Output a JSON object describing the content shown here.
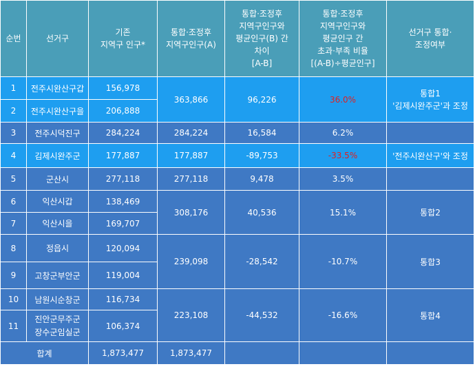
{
  "header": {
    "col_no": "순번",
    "col_district": "선거구",
    "col_pop_line1": "기존",
    "col_pop_line2": "지역구 인구*",
    "col_merged_line1": "통합·조정후",
    "col_merged_line2": "지역구인구(A)",
    "col_diff_line1": "통합·조정후",
    "col_diff_line2": "지역구인구와",
    "col_diff_line3": "평균인구(B) 간",
    "col_diff_line4": "차이",
    "col_diff_line5": "[A-B]",
    "col_ratio_line1": "통합·조정후",
    "col_ratio_line2": "지역구인구와",
    "col_ratio_line3": "평균인구 간",
    "col_ratio_line4": "초과·부족 비율",
    "col_ratio_line5": "[(A-B)÷평균인구]",
    "col_status_line1": "선거구 통합·",
    "col_status_line2": "조정여부"
  },
  "rows": [
    {
      "no": "1",
      "district": "전주시완산구갑",
      "pop": "156,978"
    },
    {
      "no": "2",
      "district": "전주시완산구을",
      "pop": "206,888"
    },
    {
      "no": "3",
      "district": "전주시덕진구",
      "pop": "284,224"
    },
    {
      "no": "4",
      "district": "김제시완주군",
      "pop": "177,887"
    },
    {
      "no": "5",
      "district": "군산시",
      "pop": "277,118"
    },
    {
      "no": "6",
      "district": "익산시갑",
      "pop": "138,469"
    },
    {
      "no": "7",
      "district": "익산시을",
      "pop": "169,707"
    },
    {
      "no": "8",
      "district": "정읍시",
      "pop": "120,094"
    },
    {
      "no": "9",
      "district": "고창군부안군",
      "pop": "119,004"
    },
    {
      "no": "10",
      "district": "남원시순창군",
      "pop": "116,734"
    },
    {
      "no": "11",
      "district_line1": "진안군무주군",
      "district_line2": "장수군임실군",
      "pop": "106,374"
    }
  ],
  "groups": [
    {
      "merged": "363,866",
      "diff": "96,226",
      "ratio": "36.0%",
      "status_line1": "통합1",
      "status_line2": "'김제시완주군'과 조정"
    },
    {
      "merged": "284,224",
      "diff": "16,584",
      "ratio": "6.2%",
      "status": ""
    },
    {
      "merged": "177,887",
      "diff": "-89,753",
      "ratio": "-33.5%",
      "status": "'전주시완산구'와 조정"
    },
    {
      "merged": "277,118",
      "diff": "9,478",
      "ratio": "3.5%",
      "status": ""
    },
    {
      "merged": "308,176",
      "diff": "40,536",
      "ratio": "15.1%",
      "status": "통합2"
    },
    {
      "merged": "239,098",
      "diff": "-28,542",
      "ratio": "-10.7%",
      "status": "통합3"
    },
    {
      "merged": "223,108",
      "diff": "-44,532",
      "ratio": "-16.6%",
      "status": "통합4"
    }
  ],
  "total": {
    "label": "합계",
    "pop": "1,873,477",
    "merged": "1,873,477"
  },
  "colors": {
    "header_bg": "#4a9eb8",
    "light_row": "#1e9ef0",
    "dark_row": "#3f79c4",
    "highlight_text": "#e02020",
    "text": "#ffffff"
  }
}
